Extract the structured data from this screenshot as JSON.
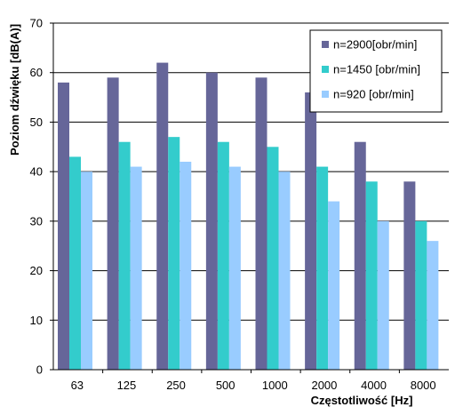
{
  "chart_data": {
    "type": "bar",
    "title": "",
    "xlabel": "Częstotliwość [Hz]",
    "ylabel": "Poziom dźwięku [dB(A)]",
    "ylim": [
      0,
      70
    ],
    "yticks": [
      0,
      10,
      20,
      30,
      40,
      50,
      60,
      70
    ],
    "grid": true,
    "legend_position": "top-right",
    "categories": [
      "63",
      "125",
      "250",
      "500",
      "1000",
      "2000",
      "4000",
      "8000"
    ],
    "series": [
      {
        "name": "n=2900[obr/min]",
        "color": "#666699",
        "values": [
          58,
          59,
          62,
          60,
          59,
          56,
          46,
          38
        ]
      },
      {
        "name": "n=1450  [obr/min]",
        "color": "#33cccc",
        "values": [
          43,
          46,
          47,
          46,
          45,
          41,
          38,
          30
        ]
      },
      {
        "name": "n=920  [obr/min]",
        "color": "#99ccff",
        "values": [
          40,
          41,
          42,
          41,
          40,
          34,
          30,
          26
        ]
      }
    ]
  }
}
